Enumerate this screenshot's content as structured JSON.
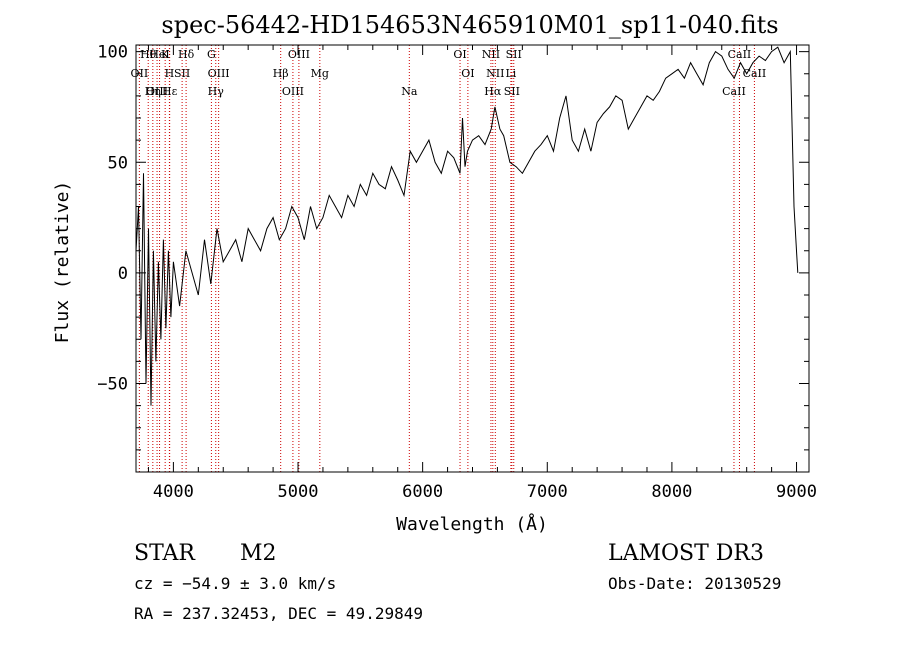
{
  "chart_data": {
    "type": "line",
    "title": "spec-56442-HD154653N465910M01_sp11-040.fits",
    "xlabel": "Wavelength (Å)",
    "ylabel": "Flux (relative)",
    "xlim": [
      3700,
      9100
    ],
    "ylim": [
      -90,
      103
    ],
    "x_ticks": [
      4000,
      5000,
      6000,
      7000,
      8000,
      9000
    ],
    "x_tick_labels": [
      "4000",
      "5000",
      "6000",
      "7000",
      "8000",
      "9000"
    ],
    "y_ticks": [
      -50,
      0,
      50,
      100
    ],
    "y_tick_labels": [
      "−50",
      "0",
      "50",
      "100"
    ],
    "series": [
      {
        "name": "flux",
        "x": [
          3700,
          3720,
          3740,
          3760,
          3780,
          3800,
          3820,
          3840,
          3860,
          3880,
          3900,
          3920,
          3940,
          3960,
          3980,
          4000,
          4050,
          4100,
          4150,
          4200,
          4250,
          4300,
          4350,
          4400,
          4450,
          4500,
          4550,
          4600,
          4650,
          4700,
          4750,
          4800,
          4850,
          4900,
          4950,
          5000,
          5050,
          5100,
          5150,
          5200,
          5250,
          5300,
          5350,
          5400,
          5450,
          5500,
          5550,
          5600,
          5650,
          5700,
          5750,
          5800,
          5850,
          5900,
          5950,
          6000,
          6050,
          6100,
          6150,
          6200,
          6250,
          6300,
          6320,
          6340,
          6360,
          6400,
          6450,
          6500,
          6550,
          6580,
          6620,
          6650,
          6700,
          6750,
          6800,
          6850,
          6900,
          6950,
          7000,
          7050,
          7100,
          7150,
          7200,
          7250,
          7300,
          7350,
          7400,
          7450,
          7500,
          7550,
          7600,
          7650,
          7700,
          7750,
          7800,
          7850,
          7900,
          7950,
          8000,
          8050,
          8100,
          8150,
          8200,
          8250,
          8300,
          8350,
          8400,
          8450,
          8500,
          8550,
          8600,
          8650,
          8700,
          8750,
          8800,
          8850,
          8900,
          8950,
          8980,
          9000,
          9010
        ],
        "y": [
          10,
          30,
          -30,
          45,
          -50,
          20,
          -60,
          10,
          -40,
          5,
          -30,
          15,
          -25,
          10,
          -20,
          5,
          -15,
          10,
          0,
          -10,
          15,
          -5,
          20,
          5,
          10,
          15,
          5,
          20,
          15,
          10,
          20,
          25,
          15,
          20,
          30,
          25,
          15,
          30,
          20,
          25,
          35,
          30,
          25,
          35,
          30,
          40,
          35,
          45,
          40,
          38,
          48,
          42,
          35,
          55,
          50,
          55,
          60,
          50,
          45,
          55,
          52,
          45,
          70,
          48,
          55,
          60,
          62,
          58,
          65,
          75,
          65,
          62,
          50,
          48,
          45,
          50,
          55,
          58,
          62,
          55,
          70,
          80,
          60,
          55,
          65,
          55,
          68,
          72,
          75,
          80,
          78,
          65,
          70,
          75,
          80,
          78,
          82,
          88,
          90,
          92,
          88,
          95,
          90,
          85,
          95,
          100,
          98,
          92,
          88,
          95,
          90,
          95,
          98,
          96,
          100,
          102,
          95,
          100,
          30,
          10,
          0
        ]
      }
    ],
    "spectral_lines": [
      {
        "name": "Hθ",
        "x": 3798
      },
      {
        "name": "OII",
        "x": 3727
      },
      {
        "name": "OIII",
        "x": 3869
      },
      {
        "name": "K",
        "x": 3934
      },
      {
        "name": "H",
        "x": 3968
      },
      {
        "name": "Hε",
        "x": 3970
      },
      {
        "name": "HeI",
        "x": 3889
      },
      {
        "name": "SII",
        "x": 4070
      },
      {
        "name": "Hη",
        "x": 3835
      },
      {
        "name": "Hδ",
        "x": 4102
      },
      {
        "name": "OIII",
        "x": 4363
      },
      {
        "name": "Hγ",
        "x": 4340
      },
      {
        "name": "G",
        "x": 4305
      },
      {
        "name": "Hβ",
        "x": 4861
      },
      {
        "name": "OIII",
        "x": 4959
      },
      {
        "name": "OIII",
        "x": 5007
      },
      {
        "name": "Mg",
        "x": 5175
      },
      {
        "name": "Na",
        "x": 5893
      },
      {
        "name": "OI",
        "x": 6300
      },
      {
        "name": "OI",
        "x": 6363
      },
      {
        "name": "Hα",
        "x": 6563
      },
      {
        "name": "NII",
        "x": 6548
      },
      {
        "name": "NII",
        "x": 6583
      },
      {
        "name": "SII",
        "x": 6716
      },
      {
        "name": "SII",
        "x": 6731
      },
      {
        "name": "Li",
        "x": 6708
      },
      {
        "name": "CaII",
        "x": 8498
      },
      {
        "name": "CaII",
        "x": 8542
      },
      {
        "name": "CaII",
        "x": 8662
      }
    ]
  },
  "info": {
    "object_class": "STAR",
    "subclass": "M2",
    "survey": "LAMOST DR3",
    "cz": "cz = −54.9 ± 3.0 km/s",
    "obs_date": "Obs-Date: 20130529",
    "coords": "RA = 237.32453, DEC =  49.29849"
  },
  "colors": {
    "line_markers": "#cc0000",
    "spectrum": "#000000"
  }
}
